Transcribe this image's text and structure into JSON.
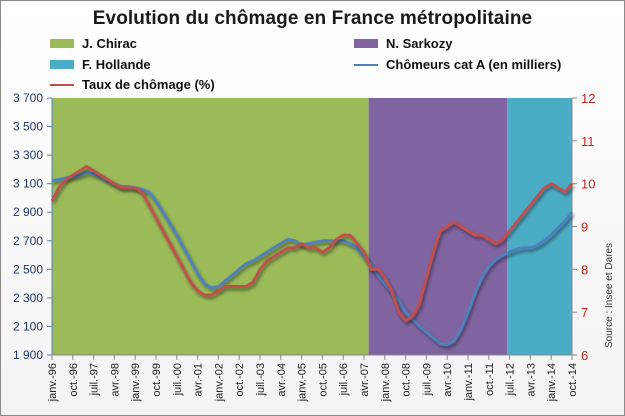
{
  "title": "Evolution du chômage en France métropolitaine",
  "legend": [
    {
      "label": "J. Chirac",
      "kind": "area",
      "color": "#9bbb59"
    },
    {
      "label": "N. Sarkozy",
      "kind": "area",
      "color": "#8064a2"
    },
    {
      "label": "F. Hollande",
      "kind": "area",
      "color": "#4bacc6"
    },
    {
      "label": "Chômeurs cat A (en milliers)",
      "kind": "line",
      "color": "#4f81bd"
    },
    {
      "label": "Taux de chômage (%)",
      "kind": "line",
      "color": "#c0504d"
    }
  ],
  "source": "Source : Insee et Dares",
  "chart_data": {
    "type": "line",
    "title": "Evolution du chômage en France métropolitaine",
    "xlabel": "",
    "ylabel": "",
    "y_left": {
      "ticks": [
        "1 900",
        "2 100",
        "2 300",
        "2 500",
        "2 700",
        "2 900",
        "3 100",
        "3 300",
        "3 500",
        "3 700"
      ],
      "range": [
        1900,
        3700
      ]
    },
    "y_right": {
      "ticks": [
        "6",
        "7",
        "8",
        "9",
        "10",
        "11",
        "12"
      ],
      "range": [
        6,
        12
      ]
    },
    "x_tick_labels": [
      "janv.-96",
      "oct.-96",
      "juil.-97",
      "avr.-98",
      "janv.-99",
      "oct.-99",
      "juil.-00",
      "avr.-01",
      "janv.-02",
      "oct.-02",
      "juil.-03",
      "avr.-04",
      "janv.-05",
      "oct.-05",
      "juil.-06",
      "avr.-07",
      "janv.-08",
      "oct.-08",
      "juil.-09",
      "avr.-10",
      "janv.-11",
      "oct.-11",
      "juil.-12",
      "avr.-13",
      "janv.-14",
      "oct.-14"
    ],
    "x_range_months": [
      0,
      225
    ],
    "periods": [
      {
        "name": "J. Chirac",
        "start_month": 0,
        "end_month": 137,
        "color": "#9bbb59"
      },
      {
        "name": "N. Sarkozy",
        "start_month": 137,
        "end_month": 197,
        "color": "#8064a2"
      },
      {
        "name": "F. Hollande",
        "start_month": 197,
        "end_month": 225,
        "color": "#4bacc6"
      }
    ],
    "series": [
      {
        "name": "Chômeurs cat A (en milliers)",
        "axis": "left",
        "color": "#4f81bd",
        "month_step": 3,
        "values": [
          3120,
          3130,
          3140,
          3150,
          3160,
          3180,
          3170,
          3150,
          3120,
          3100,
          3080,
          3080,
          3070,
          3060,
          3040,
          2980,
          2900,
          2820,
          2740,
          2650,
          2560,
          2470,
          2400,
          2370,
          2380,
          2420,
          2460,
          2500,
          2540,
          2560,
          2590,
          2620,
          2650,
          2680,
          2710,
          2700,
          2670,
          2680,
          2690,
          2700,
          2700,
          2700,
          2700,
          2680,
          2650,
          2590,
          2530,
          2460,
          2400,
          2340,
          2280,
          2200,
          2150,
          2100,
          2060,
          2020,
          1980,
          1970,
          2000,
          2080,
          2200,
          2330,
          2440,
          2520,
          2570,
          2600,
          2620,
          2640,
          2650,
          2650,
          2670,
          2700,
          2740,
          2790,
          2840,
          2900
        ]
      },
      {
        "name": "Taux de chômage (%)",
        "axis": "right",
        "color": "#c0504d",
        "month_step": 3,
        "values": [
          9.6,
          9.9,
          10.1,
          10.2,
          10.3,
          10.4,
          10.3,
          10.2,
          10.1,
          10.0,
          9.9,
          9.9,
          9.9,
          9.8,
          9.5,
          9.2,
          8.9,
          8.6,
          8.3,
          8.0,
          7.7,
          7.5,
          7.4,
          7.4,
          7.5,
          7.6,
          7.6,
          7.6,
          7.6,
          7.7,
          8.0,
          8.2,
          8.3,
          8.4,
          8.5,
          8.5,
          8.6,
          8.5,
          8.5,
          8.4,
          8.5,
          8.7,
          8.8,
          8.8,
          8.6,
          8.4,
          8.0,
          8.0,
          7.8,
          7.5,
          7.0,
          6.8,
          6.9,
          7.2,
          7.8,
          8.4,
          8.9,
          9.0,
          9.1,
          9.0,
          8.9,
          8.8,
          8.8,
          8.7,
          8.6,
          8.7,
          8.9,
          9.1,
          9.3,
          9.5,
          9.7,
          9.9,
          10.0,
          9.9,
          9.8,
          10.0
        ]
      }
    ]
  }
}
